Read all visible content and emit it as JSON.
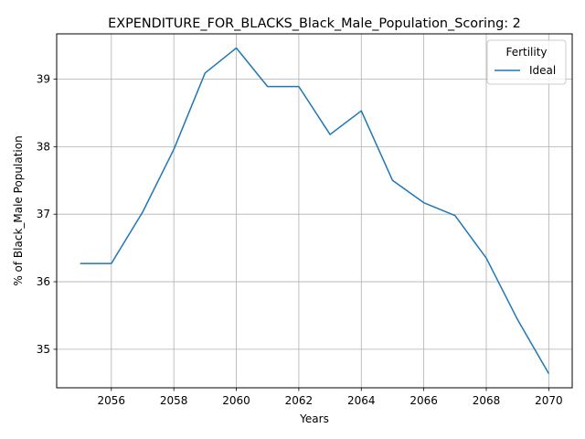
{
  "chart_data": {
    "type": "line",
    "title": "EXPENDITURE_FOR_BLACKS_Black_Male_Population_Scoring: 2",
    "xlabel": "Years",
    "ylabel": "% of Black_Male Population",
    "xlim": [
      2054.25,
      2070.75
    ],
    "ylim": [
      34.43,
      39.67
    ],
    "xticks": [
      2056,
      2058,
      2060,
      2062,
      2064,
      2066,
      2068,
      2070
    ],
    "yticks": [
      35,
      36,
      37,
      38,
      39
    ],
    "grid": true,
    "legend": {
      "title": "Fertility",
      "position": "top-right"
    },
    "x": [
      2055,
      2056,
      2057,
      2058,
      2059,
      2060,
      2061,
      2062,
      2063,
      2064,
      2065,
      2066,
      2067,
      2068,
      2069,
      2070
    ],
    "series": [
      {
        "name": "Ideal",
        "color": "#1f77b4",
        "values": [
          36.27,
          36.27,
          37.03,
          37.96,
          39.09,
          39.46,
          38.89,
          38.89,
          38.18,
          38.53,
          37.5,
          37.17,
          36.98,
          36.35,
          35.44,
          34.64
        ]
      }
    ]
  }
}
